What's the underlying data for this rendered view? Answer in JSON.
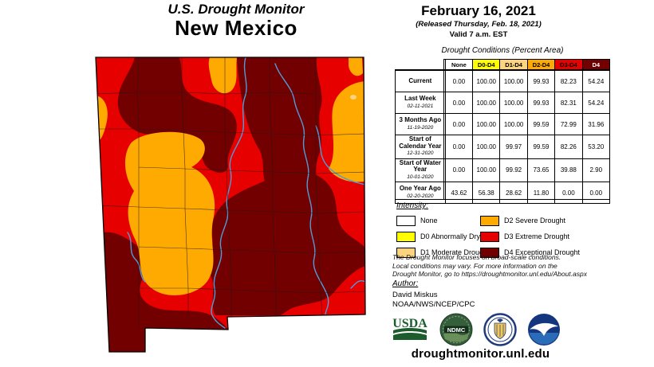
{
  "title": {
    "line1": "U.S. Drought Monitor",
    "line2": "New Mexico"
  },
  "date_block": {
    "date": "February 16, 2021",
    "released": "(Released Thursday, Feb. 18, 2021)",
    "valid": "Valid 7 a.m. EST"
  },
  "table": {
    "caption": "Drought Conditions (Percent Area)",
    "columns": [
      "None",
      "D0-D4",
      "D1-D4",
      "D2-D4",
      "D3-D4",
      "D4"
    ],
    "rows": [
      {
        "label": "Current",
        "date": "",
        "values": [
          "0.00",
          "100.00",
          "100.00",
          "99.93",
          "82.23",
          "54.24"
        ]
      },
      {
        "label": "Last Week",
        "date": "02-11-2021",
        "values": [
          "0.00",
          "100.00",
          "100.00",
          "99.93",
          "82.31",
          "54.24"
        ]
      },
      {
        "label": "3 Months Ago",
        "date": "11-19-2020",
        "values": [
          "0.00",
          "100.00",
          "100.00",
          "99.59",
          "72.99",
          "31.96"
        ]
      },
      {
        "label": "Start of Calendar Year",
        "date": "12-31-2020",
        "values": [
          "0.00",
          "100.00",
          "99.97",
          "99.59",
          "82.26",
          "53.20"
        ]
      },
      {
        "label": "Start of Water Year",
        "date": "10-01-2020",
        "values": [
          "0.00",
          "100.00",
          "99.92",
          "73.65",
          "39.88",
          "2.90"
        ]
      },
      {
        "label": "One Year Ago",
        "date": "02-20-2020",
        "values": [
          "43.62",
          "56.38",
          "28.62",
          "11.80",
          "0.00",
          "0.00"
        ]
      }
    ]
  },
  "legend": {
    "title": "Intensity:",
    "items": [
      {
        "label": "None",
        "color_key": "none"
      },
      {
        "label": "D0 Abnormally Dry",
        "color_key": "d0"
      },
      {
        "label": "D1 Moderate Drought",
        "color_key": "d1"
      },
      {
        "label": "D2 Severe Drought",
        "color_key": "d2"
      },
      {
        "label": "D3 Extreme Drought",
        "color_key": "d3"
      },
      {
        "label": "D4 Exceptional Drought",
        "color_key": "d4"
      }
    ]
  },
  "disclaimer": [
    "The Drought Monitor focuses on broad-scale conditions.",
    "Local conditions may vary. For more information on the",
    "Drought Monitor, go to https://droughtmonitor.unl.edu/About.aspx"
  ],
  "author": {
    "title": "Author:",
    "name": "David Miskus",
    "org": "NOAA/NWS/NCEP/CPC"
  },
  "footer": {
    "url": "droughtmonitor.unl.edu",
    "logos": [
      "USDA",
      "NDMC",
      "DOC",
      "NOAA"
    ]
  },
  "logo_text": {
    "usda": "USDA",
    "ndmc": "NDMC"
  },
  "colors": {
    "none": "#FFFFFF",
    "d0": "#FFFF00",
    "d1": "#FCD37F",
    "d2": "#FFAA00",
    "d3": "#E60000",
    "d4": "#730000",
    "river": "#4f9bd8",
    "county_line": "#1a1a1a",
    "header_text_dark": "#000000",
    "header_text_light": "#FFFFFF"
  }
}
